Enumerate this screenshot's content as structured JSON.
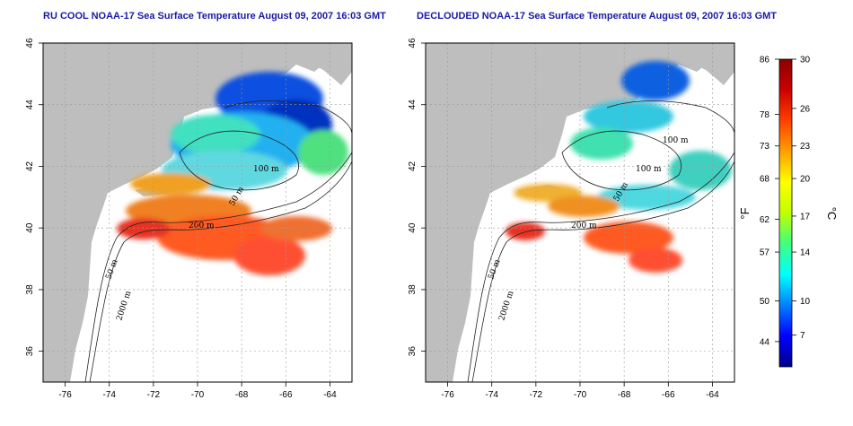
{
  "panels": [
    {
      "id": "ru-cool",
      "title": "RU COOL NOAA-17 Sea Surface Temperature August 09, 2007 16:03 GMT"
    },
    {
      "id": "declouded",
      "title": "DECLOUDED NOAA-17 Sea Surface Temperature August 09, 2007 16:03 GMT"
    }
  ],
  "axes": {
    "x_ticks": [
      "-76",
      "-74",
      "-72",
      "-70",
      "-68",
      "-66",
      "-64"
    ],
    "y_ticks": [
      "46",
      "44",
      "42",
      "40",
      "38",
      "36"
    ],
    "x_values": [
      -76,
      -74,
      -72,
      -70,
      -68,
      -66,
      -64
    ],
    "y_values": [
      46,
      44,
      42,
      40,
      38,
      36
    ],
    "x_range": [
      -77,
      -63
    ],
    "y_range": [
      35,
      46
    ],
    "grid": "dotted"
  },
  "contour_labels": [
    "100 m",
    "200 m",
    "50 m",
    "2000 m"
  ],
  "colorbar": {
    "fahrenheit_labels": [
      "86",
      "78",
      "73",
      "68",
      "62",
      "57",
      "50",
      "44"
    ],
    "celsius_labels": [
      "30",
      "26",
      "23",
      "20",
      "17",
      "14",
      "10",
      "7"
    ],
    "unit_f": "°F",
    "unit_c": "°C",
    "range_c": [
      5,
      30
    ],
    "colors": [
      "#00008b",
      "#0000ff",
      "#0080ff",
      "#00ffff",
      "#40ff80",
      "#c0ff00",
      "#ffff00",
      "#ffa000",
      "#ff4000",
      "#cc0000",
      "#8b0000"
    ]
  },
  "colors": {
    "land": "#bebebe",
    "water_bg": "#ffffff"
  }
}
